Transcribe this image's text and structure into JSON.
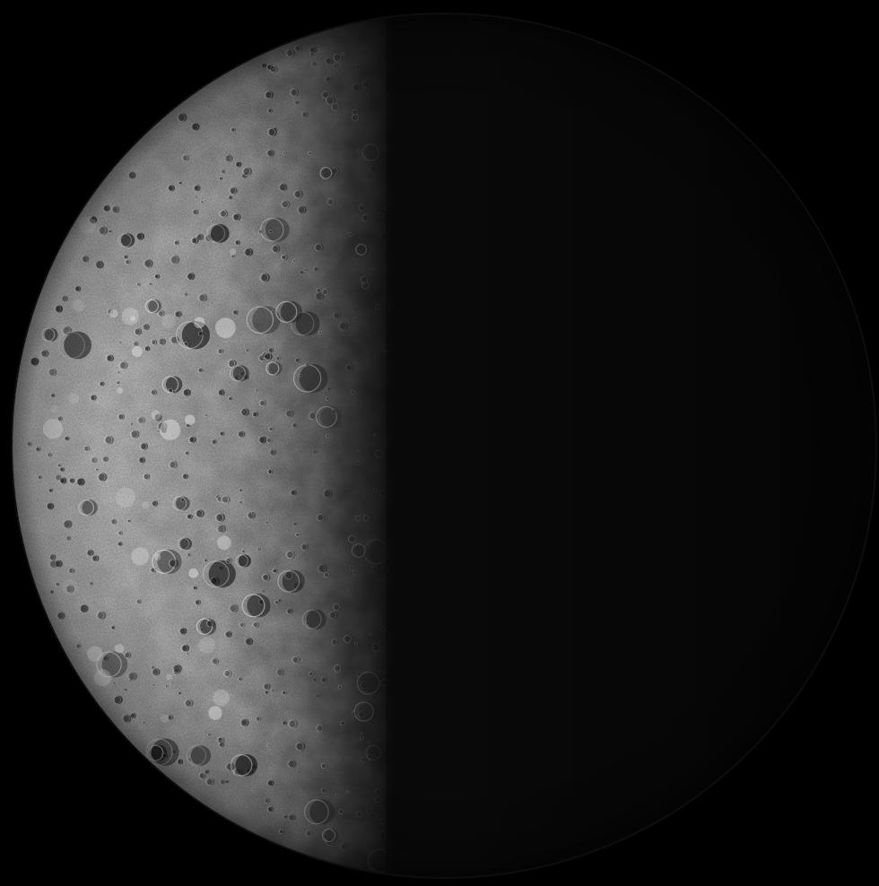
{
  "image": {
    "subject": "planet-crescent",
    "lit_side": "left",
    "colors": {
      "space": "#000000",
      "surface_light": "#c9c9c9",
      "surface_mid": "#7a7a7a",
      "surface_dark": "#2a2a2a",
      "night_side": "#050505",
      "crater_shadow": "#151515",
      "crater_rim": "#e6e6e6"
    }
  }
}
